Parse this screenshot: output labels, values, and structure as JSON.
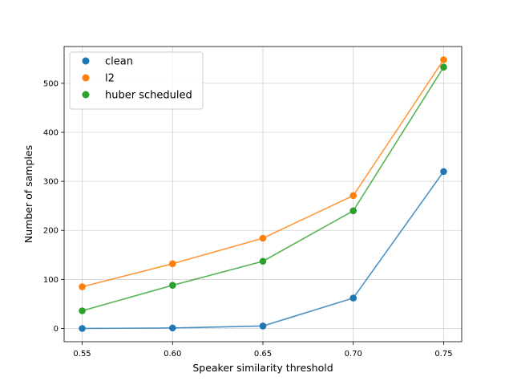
{
  "chart_data": {
    "type": "line",
    "xlabel": "Speaker similarity threshold",
    "ylabel": "Number of samples",
    "x": [
      0.55,
      0.6,
      0.65,
      0.7,
      0.75
    ],
    "x_tick_labels": [
      "0.55",
      "0.60",
      "0.65",
      "0.70",
      "0.75"
    ],
    "xlim": [
      0.54,
      0.76
    ],
    "y_ticks": [
      0,
      100,
      200,
      300,
      400,
      500
    ],
    "y_tick_labels": [
      "0",
      "100",
      "200",
      "300",
      "400",
      "500"
    ],
    "ylim": [
      -27,
      575
    ],
    "grid": true,
    "legend_position": "top-left",
    "series": [
      {
        "name": "clean",
        "color": "#1f77b4",
        "values": [
          0,
          1,
          5,
          62,
          320
        ]
      },
      {
        "name": "l2",
        "color": "#ff7f0e",
        "values": [
          85,
          132,
          184,
          271,
          548
        ]
      },
      {
        "name": "huber scheduled",
        "color": "#2ca02c",
        "values": [
          36,
          88,
          137,
          240,
          533
        ]
      }
    ]
  }
}
